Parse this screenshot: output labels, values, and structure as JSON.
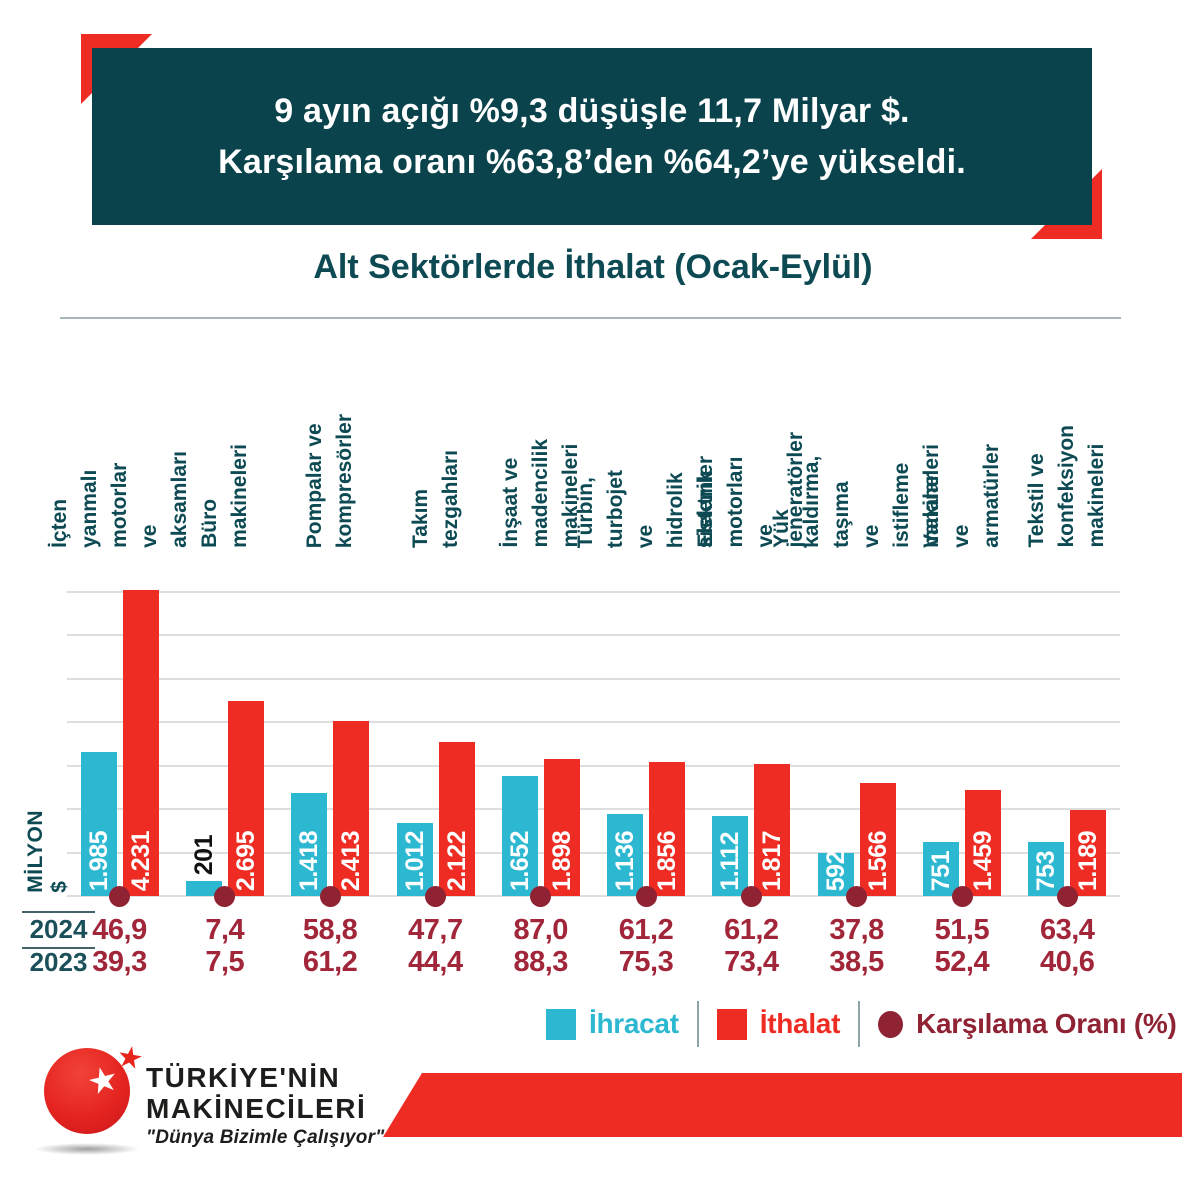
{
  "banner": {
    "line1": "9 ayın açığı %9,3 düşüşle 11,7 Milyar $.",
    "line2": "Karşılama oranı %63,8’den %64,2’ye yükseldi."
  },
  "chart_data": {
    "type": "bar",
    "title": "Alt Sektörlerde İthalat (Ocak-Eylül)",
    "ylabel": "MİLYON $",
    "unit": "milyon $",
    "ylim": [
      0,
      4200
    ],
    "gridline_step": 600,
    "grid": true,
    "legend_position": "bottom-right",
    "categories": [
      "İçten yanmalı motorlar\nve aksamları",
      "Büro makineleri",
      "Pompalar ve\nkompresörler",
      "Takım tezgahları",
      "İnşaat ve madencilik\nmakineleri",
      "Türbin, turbojet ve\nhidrolik sistemler",
      "Elektrik motorları\nve jeneratörler",
      "Yük kaldırma, taşıma\nve istifleme makineleri",
      "Vanalar ve\narmatürler",
      "Tekstil ve konfeksiyon\nmakineleri"
    ],
    "series": [
      {
        "name": "İhracat",
        "color": "#2db8d2",
        "values": [
          1985,
          201,
          1418,
          1012,
          1652,
          1136,
          1112,
          592,
          751,
          753
        ],
        "labels": [
          "1.985",
          "201",
          "1.418",
          "1.012",
          "1.652",
          "1.136",
          "1.112",
          "592",
          "751",
          "753"
        ]
      },
      {
        "name": "İthalat",
        "color": "#ee2c23",
        "values": [
          4231,
          2695,
          2413,
          2122,
          1898,
          1856,
          1817,
          1566,
          1459,
          1189
        ],
        "labels": [
          "4.231",
          "2.695",
          "2.413",
          "2.122",
          "1.898",
          "1.856",
          "1.817",
          "1.566",
          "1.459",
          "1.189"
        ]
      }
    ],
    "coverage_ratio": {
      "name": "Karşılama Oranı (%)",
      "marker_color": "#8f2233",
      "rows": [
        {
          "year": "2024",
          "values": [
            "46,9",
            "7,4",
            "58,8",
            "47,7",
            "87,0",
            "61,2",
            "61,2",
            "37,8",
            "51,5",
            "63,4"
          ]
        },
        {
          "year": "2023",
          "values": [
            "39,3",
            "7,5",
            "61,2",
            "44,4",
            "88,3",
            "75,3",
            "73,4",
            "38,5",
            "52,4",
            "40,6"
          ]
        }
      ]
    }
  },
  "legend": {
    "items": [
      {
        "label": "İhracat",
        "color": "#2db8d2",
        "marker": "square"
      },
      {
        "label": "İthalat",
        "color": "#ee2c23",
        "marker": "square"
      },
      {
        "label": "Karşılama Oranı (%)",
        "color": "#8f2233",
        "marker": "circle"
      }
    ]
  },
  "logo": {
    "name_line1": "TÜRKİYE'NİN",
    "name_line2": "MAKİNECİLERİ",
    "tagline": "\"Dünya Bizimle Çalışıyor\""
  },
  "colors": {
    "banner_bg": "#0a434c",
    "accent_red": "#ee2c23",
    "teal_text": "#0d4a53",
    "export_cyan": "#2db8d2",
    "import_red": "#ee2c23",
    "ratio_maroon": "#8f2233",
    "table_value_text": "#a2263a",
    "gridline": "#dedede"
  }
}
